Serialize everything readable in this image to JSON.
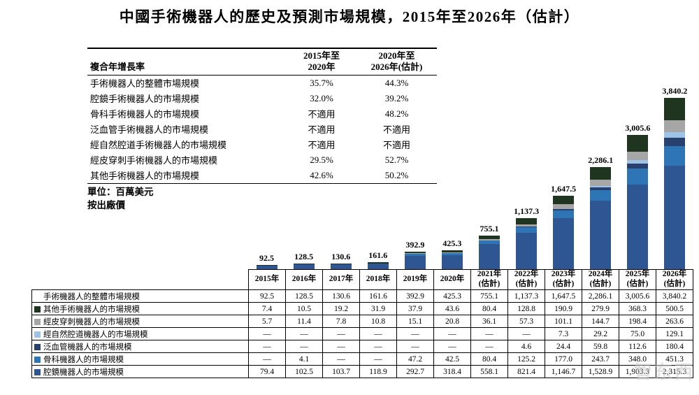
{
  "title": "中國手術機器人的歷史及預測市場規模，2015年至2026年（估計）",
  "cagr_table": {
    "header": {
      "label": "複合年增長率",
      "col1": [
        "2015年至",
        "2020年"
      ],
      "col2": [
        "2020年至",
        "2026年(估計)"
      ]
    },
    "rows": [
      {
        "label": "手術機器人的整體市場規模",
        "v1": "35.7%",
        "v2": "44.3%"
      },
      {
        "label": "腔鏡手術機器人的市場規模",
        "v1": "32.0%",
        "v2": "39.2%"
      },
      {
        "label": "骨科手術機器人的市場規模",
        "v1": "不適用",
        "v2": "48.2%"
      },
      {
        "label": "泛血管手術機器人的市場規模",
        "v1": "不適用",
        "v2": "不適用"
      },
      {
        "label": "經自然腔道手術機器人的市場規模",
        "v1": "不適用",
        "v2": "不適用"
      },
      {
        "label": "經皮穿刺手術機器人的市場規模",
        "v1": "29.5%",
        "v2": "52.7%"
      },
      {
        "label": "其他手術機器人的市場規模",
        "v1": "42.6%",
        "v2": "50.2%"
      }
    ]
  },
  "unit_note_1": "單位：百萬美元",
  "unit_note_2": "按出廠價",
  "chart_data": {
    "type": "bar",
    "stacked": true,
    "categories": [
      "2015年",
      "2016年",
      "2017年",
      "2018年",
      "2019年",
      "2020年",
      "2021年(估計)",
      "2022年(估計)",
      "2023年(估計)",
      "2024年(估計)",
      "2025年(估計)",
      "2026年(估計)"
    ],
    "totals": [
      92.5,
      128.5,
      130.6,
      161.6,
      392.9,
      425.3,
      755.1,
      1137.3,
      1647.5,
      2286.1,
      3005.6,
      3840.2
    ],
    "totals_display": [
      "92.5",
      "128.5",
      "130.6",
      "161.6",
      "392.9",
      "425.3",
      "755.1",
      "1,137.3",
      "1,647.5",
      "2,286.1",
      "3,005.6",
      "3,840.2"
    ],
    "ylabel": "百萬美元",
    "ymax": 3840.2,
    "legend_position": "bottom-table",
    "series": [
      {
        "key": "laparoscopic",
        "name": "腔鏡機器人的市場規模",
        "color": "#2e5693",
        "values": [
          79.4,
          102.5,
          103.7,
          118.9,
          292.7,
          318.4,
          558.1,
          821.4,
          1146.7,
          1528.9,
          1903.3,
          2315.3
        ]
      },
      {
        "key": "orthopedic",
        "name": "骨科機器人的市場規模",
        "color": "#2e75b6",
        "values": [
          0,
          4.1,
          0,
          0,
          47.2,
          42.5,
          80.4,
          125.2,
          177.0,
          243.7,
          348.0,
          451.3
        ]
      },
      {
        "key": "panvascular",
        "name": "泛血管機器人的市場規模",
        "color": "#27406e",
        "values": [
          0,
          0,
          0,
          0,
          0,
          0,
          0,
          4.6,
          24.4,
          59.8,
          112.6,
          180.4
        ]
      },
      {
        "key": "natural-orifice",
        "name": "經自然腔道機器人的市場規模",
        "color": "#9dc3e6",
        "values": [
          0,
          0,
          0,
          0,
          0,
          0,
          0,
          0,
          7.3,
          29.2,
          75.0,
          129.1
        ]
      },
      {
        "key": "percutaneous",
        "name": "經皮穿刺機器人的市場規模",
        "color": "#a6a6a6",
        "values": [
          5.7,
          11.4,
          7.8,
          10.8,
          15.1,
          20.8,
          36.1,
          57.3,
          101.1,
          144.7,
          198.4,
          263.6
        ]
      },
      {
        "key": "other",
        "name": "其他手術機器人的市場規模",
        "color": "#20351f",
        "values": [
          7.4,
          10.5,
          19.2,
          31.9,
          37.9,
          43.6,
          80.4,
          128.8,
          190.9,
          279.9,
          368.3,
          500.5
        ]
      }
    ]
  },
  "bottom_table": {
    "year_headers": [
      [
        "2015年"
      ],
      [
        "2016年"
      ],
      [
        "2017年"
      ],
      [
        "2018年"
      ],
      [
        "2019年"
      ],
      [
        "2020年"
      ],
      [
        "2021年",
        "(估計)"
      ],
      [
        "2022年",
        "(估計)"
      ],
      [
        "2023年",
        "(估計)"
      ],
      [
        "2024年",
        "(估計)"
      ],
      [
        "2025年",
        "(估計)"
      ],
      [
        "2026年",
        "(估計)"
      ]
    ],
    "rows": [
      {
        "label": "手術機器人的整體市場規模",
        "swatch": null,
        "values": [
          "92.5",
          "128.5",
          "130.6",
          "161.6",
          "392.9",
          "425.3",
          "755.1",
          "1,137.3",
          "1,647.5",
          "2,286.1",
          "3,005.6",
          "3,840.2"
        ]
      },
      {
        "label": "其他手術機器人的市場規模",
        "swatch": "#20351f",
        "values": [
          "7.4",
          "10.5",
          "19.2",
          "31.9",
          "37.9",
          "43.6",
          "80.4",
          "128.8",
          "190.9",
          "279.9",
          "368.3",
          "500.5"
        ]
      },
      {
        "label": "經皮穿刺機器人的市場規模",
        "swatch": "#a6a6a6",
        "values": [
          "5.7",
          "11.4",
          "7.8",
          "10.8",
          "15.1",
          "20.8",
          "36.1",
          "57.3",
          "101.1",
          "144.7",
          "198.4",
          "263.6"
        ]
      },
      {
        "label": "經自然腔道機器人的市場規模",
        "swatch": "#9dc3e6",
        "values": [
          "—",
          "—",
          "—",
          "—",
          "—",
          "—",
          "—",
          "—",
          "7.3",
          "29.2",
          "75.0",
          "129.1"
        ]
      },
      {
        "label": "泛血管機器人的市場規模",
        "swatch": "#27406e",
        "values": [
          "—",
          "—",
          "—",
          "—",
          "—",
          "—",
          "—",
          "4.6",
          "24.4",
          "59.8",
          "112.6",
          "180.4"
        ]
      },
      {
        "label": "骨科機器人的市場規模",
        "swatch": "#2e75b6",
        "values": [
          "—",
          "4.1",
          "—",
          "—",
          "47.2",
          "42.5",
          "80.4",
          "125.2",
          "177.0",
          "243.7",
          "348.0",
          "451.3"
        ]
      },
      {
        "label": "腔鏡機器人的市場規模",
        "swatch": "#2e5693",
        "values": [
          "79.4",
          "102.5",
          "103.7",
          "118.9",
          "292.7",
          "318.4",
          "558.1",
          "821.4",
          "1,146.7",
          "1,528.9",
          "1,903.3",
          "2,315.3"
        ]
      }
    ]
  },
  "watermark": "智东西"
}
